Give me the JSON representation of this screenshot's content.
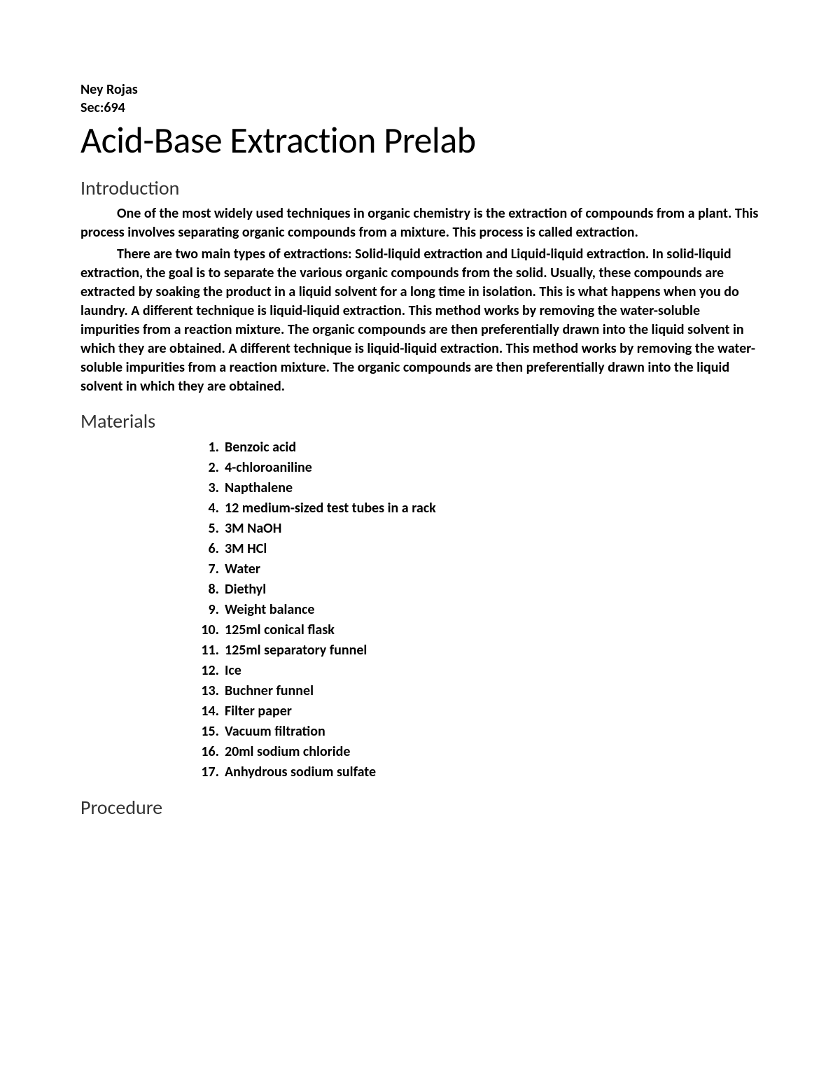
{
  "header": {
    "author": "Ney Rojas",
    "section": "Sec:694"
  },
  "title": "Acid-Base Extraction Prelab",
  "intro": {
    "heading": "Introduction",
    "para1": "One of the most widely used techniques in organic chemistry is the extraction of compounds from a plant. This process involves separating organic compounds from a mixture. This process is called extraction.",
    "para2": "There are two main types of extractions:  Solid-liquid extraction and Liquid-liquid extraction. In solid-liquid extraction, the goal is to separate the various organic compounds from the solid. Usually, these compounds are extracted by soaking the product in a liquid solvent for a long time in isolation. This is what happens when you do laundry. A different technique is liquid-liquid extraction. This method works by removing the water-soluble impurities from a reaction mixture. The organic compounds are then preferentially drawn into the liquid solvent in which they are obtained. A different technique is liquid-liquid extraction. This method works by removing the water-soluble impurities from a reaction mixture. The organic compounds are then preferentially drawn into the liquid solvent in which they are obtained."
  },
  "materials": {
    "heading": "Materials",
    "items": [
      "Benzoic acid",
      "4-chloroaniline",
      "Napthalene",
      " 12 medium-sized test tubes in a rack",
      "3M NaOH",
      "3M HCl",
      "Water",
      "Diethyl",
      "Weight balance",
      "125ml conical flask",
      "125ml separatory funnel",
      "Ice",
      "Buchner funnel",
      "Filter paper",
      "Vacuum filtration",
      "20ml sodium chloride",
      "Anhydrous sodium sulfate"
    ]
  },
  "procedure": {
    "heading": "Procedure"
  },
  "style": {
    "background_color": "#ffffff",
    "text_color": "#000000",
    "title_fontsize": 52,
    "heading_fontsize": 28,
    "body_fontsize": 20,
    "body_fontweight": "bold",
    "font_family": "Calibri"
  }
}
